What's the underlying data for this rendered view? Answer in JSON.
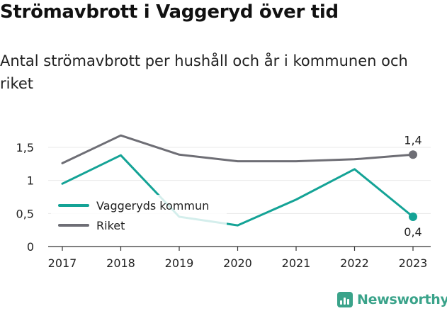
{
  "title": "Strömavbrott i Vaggeryd över tid",
  "subtitle": "Antal strömavbrott per hushåll och år i kommunen och riket",
  "brand": {
    "name": "Newsworthy",
    "icon": "bar-chart-logo-icon"
  },
  "colors": {
    "kommun": "#14a396",
    "riket": "#6e6e75",
    "grid": "#e8e8e8",
    "axis": "#333333"
  },
  "chart_data": {
    "type": "line",
    "categories": [
      "2017",
      "2018",
      "2019",
      "2020",
      "2021",
      "2022",
      "2023"
    ],
    "y_ticks": [
      "0",
      "0,5",
      "1",
      "1,5"
    ],
    "ylim": [
      0,
      1.8
    ],
    "grid": true,
    "legend_position": "bottom-left",
    "series": [
      {
        "name": "Vaggeryds kommun",
        "values": [
          0.95,
          1.38,
          0.45,
          0.32,
          0.71,
          1.17,
          0.45
        ],
        "end_label": "0,4"
      },
      {
        "name": "Riket",
        "values": [
          1.26,
          1.68,
          1.39,
          1.29,
          1.29,
          1.32,
          1.39
        ],
        "end_label": "1,4"
      }
    ]
  }
}
